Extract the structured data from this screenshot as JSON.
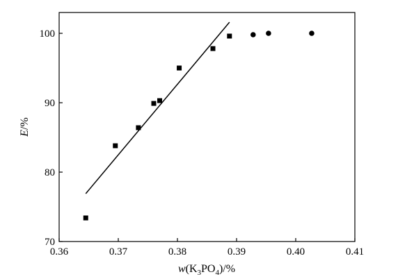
{
  "chart_data": {
    "type": "scatter",
    "xlabel": "w(K3PO4)/%",
    "ylabel": "E/%",
    "xlim": [
      0.36,
      0.41
    ],
    "ylim": [
      70,
      103
    ],
    "x_ticks": [
      0.36,
      0.37,
      0.38,
      0.39,
      0.4,
      0.41
    ],
    "y_ticks": [
      70,
      80,
      90,
      100
    ],
    "x_tick_labels": [
      "0.36",
      "0.37",
      "0.38",
      "0.39",
      "0.40",
      "0.41"
    ],
    "y_tick_labels": [
      "70",
      "80",
      "90",
      "100"
    ],
    "grid": false,
    "series": [
      {
        "marker": "square",
        "points": [
          [
            0.3645,
            73.4
          ],
          [
            0.3695,
            83.8
          ],
          [
            0.3734,
            86.4
          ],
          [
            0.376,
            89.9
          ],
          [
            0.377,
            90.3
          ],
          [
            0.3803,
            95.0
          ],
          [
            0.386,
            97.8
          ],
          [
            0.3888,
            99.6
          ]
        ]
      },
      {
        "marker": "circle",
        "points": [
          [
            0.3928,
            99.8
          ],
          [
            0.3954,
            100.0
          ],
          [
            0.4027,
            100.0
          ]
        ]
      }
    ],
    "fit_line": {
      "x": [
        0.3645,
        0.3888
      ],
      "y": [
        76.9,
        101.6
      ]
    }
  }
}
